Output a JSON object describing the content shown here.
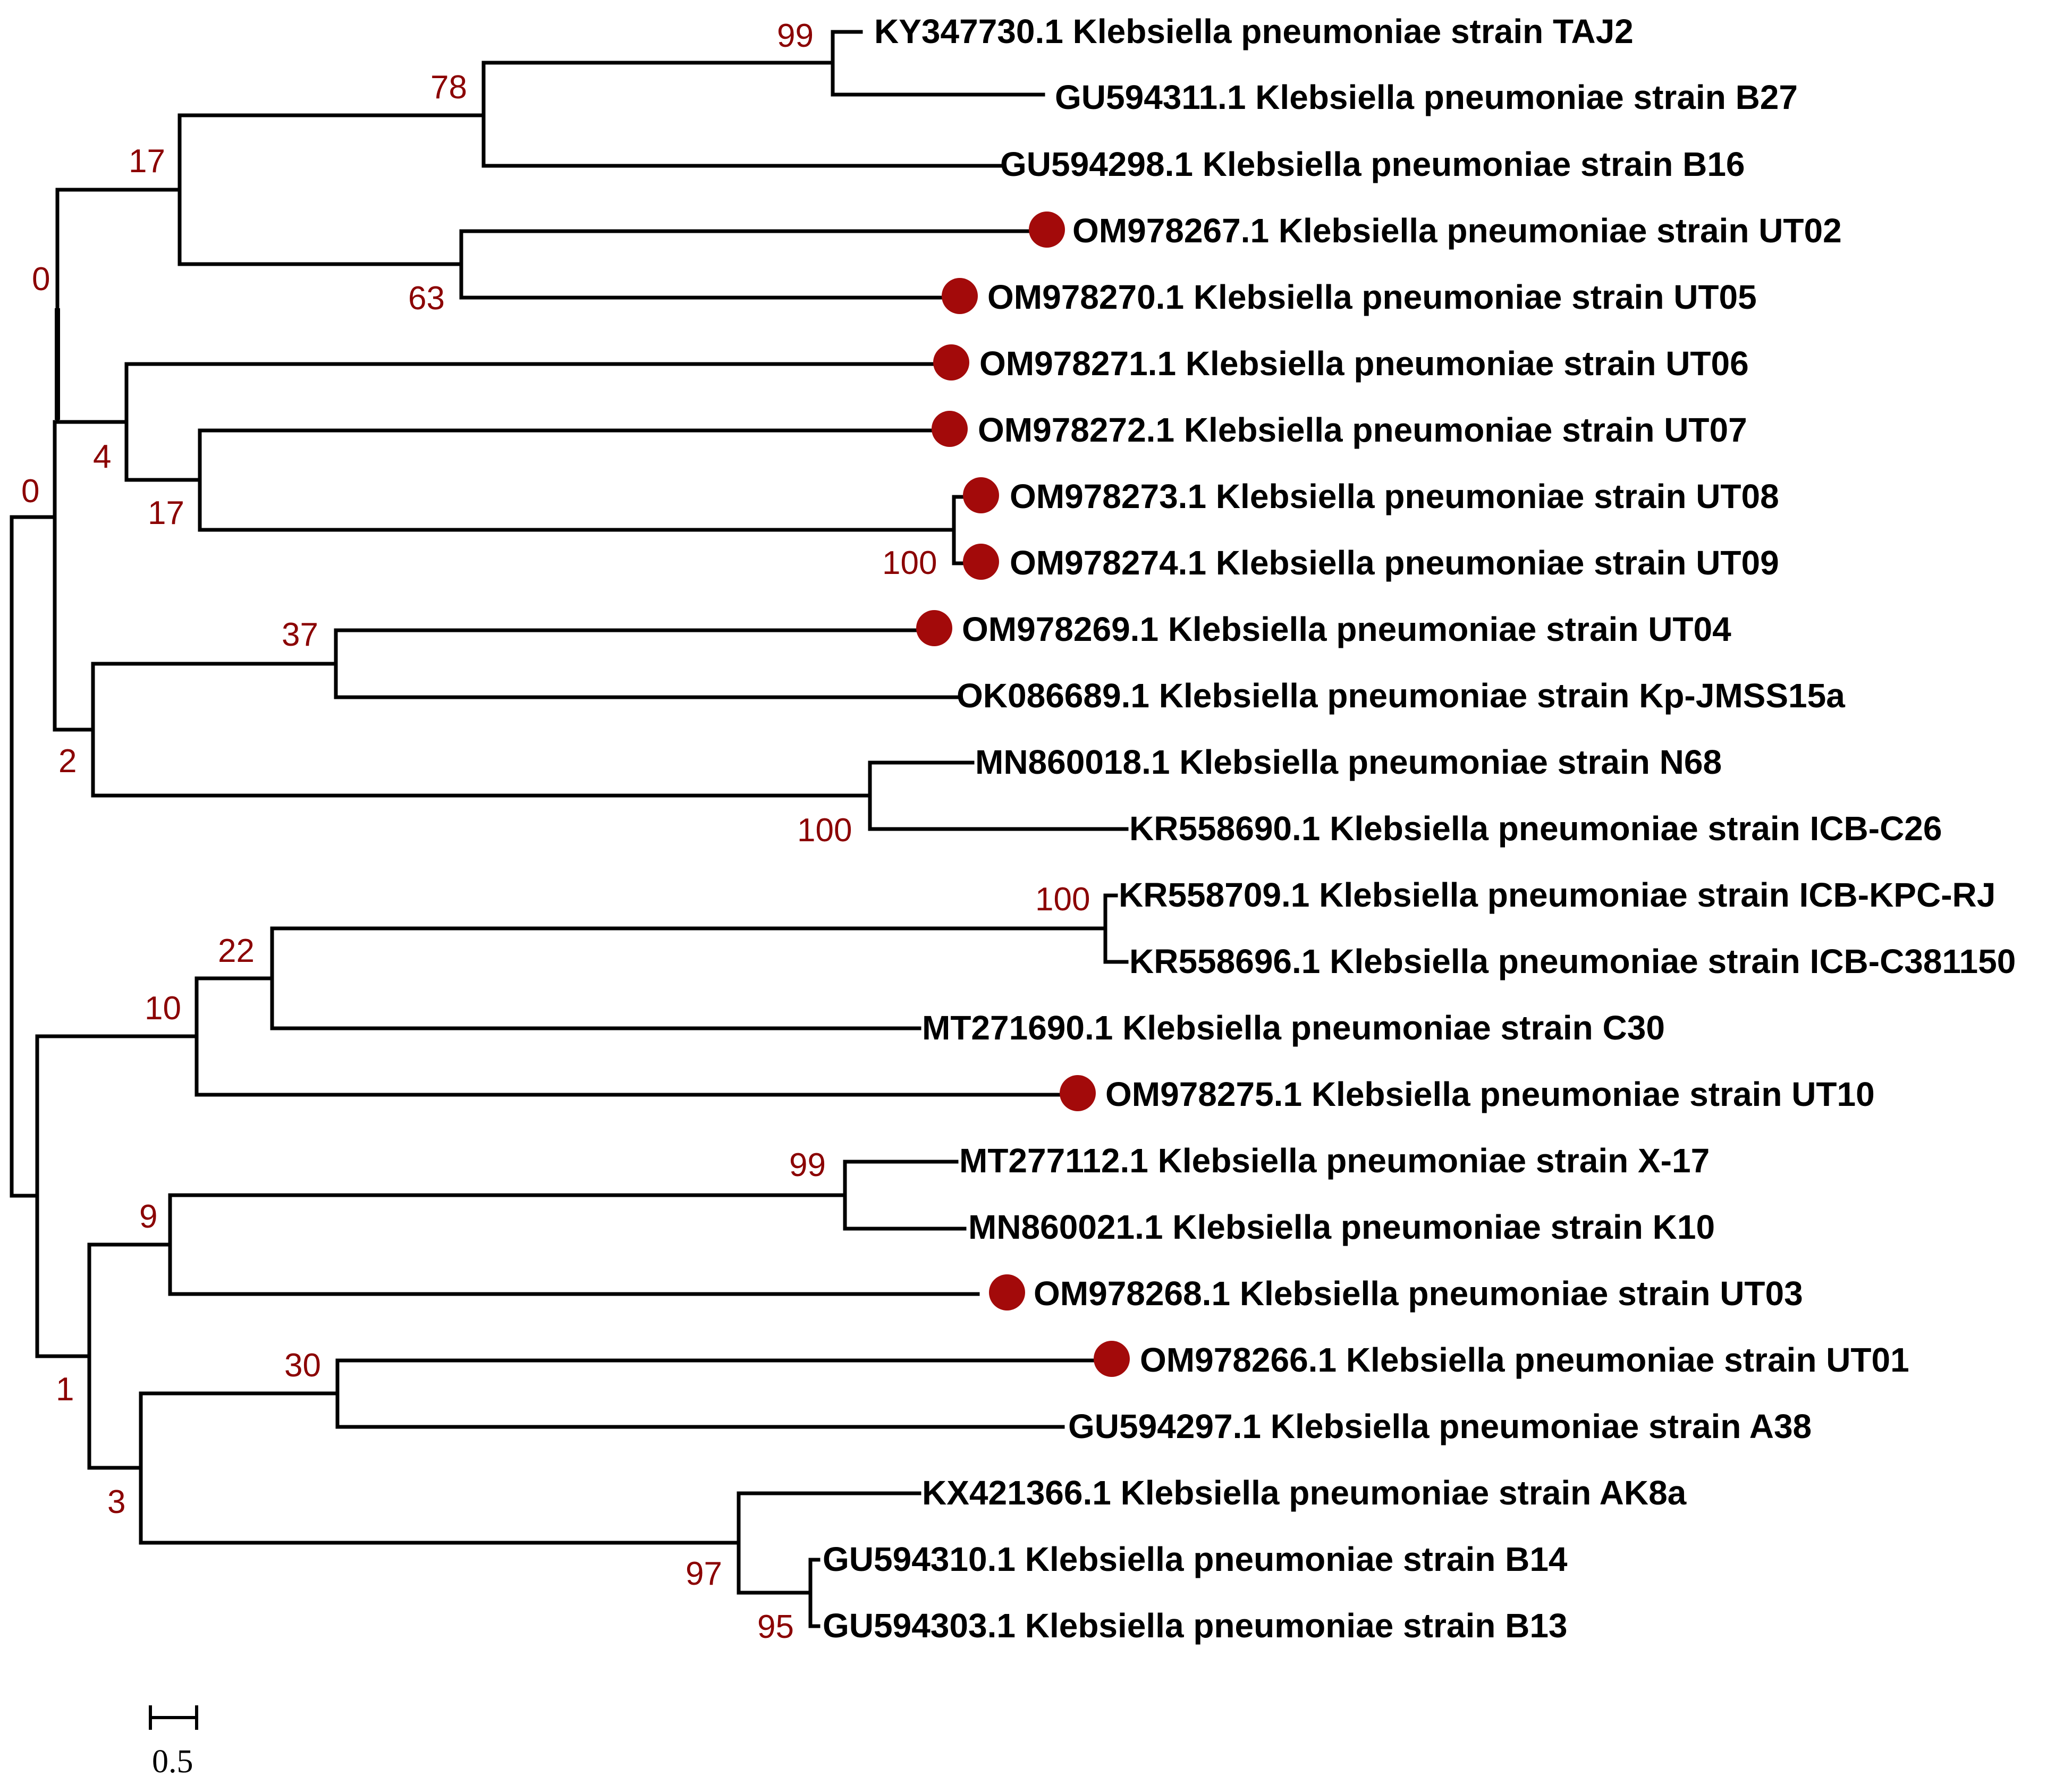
{
  "figure": {
    "type": "phylogenetic-tree",
    "colors": {
      "branch": "#000000",
      "bootstrap": "#8b0000",
      "marker": "#a30a0a"
    }
  },
  "scale_bar": {
    "label": "0.5"
  },
  "taxa": [
    {
      "label": "KY347730.1 Klebsiella pneumoniae strain TAJ2",
      "marked": false
    },
    {
      "label": "GU594311.1 Klebsiella pneumoniae strain B27",
      "marked": false
    },
    {
      "label": "GU594298.1 Klebsiella pneumoniae strain B16",
      "marked": false
    },
    {
      "label": "OM978267.1 Klebsiella pneumoniae strain UT02",
      "marked": true
    },
    {
      "label": "OM978270.1 Klebsiella pneumoniae strain UT05",
      "marked": true
    },
    {
      "label": "OM978271.1 Klebsiella pneumoniae strain UT06",
      "marked": true
    },
    {
      "label": "OM978272.1 Klebsiella pneumoniae strain UT07",
      "marked": true
    },
    {
      "label": "OM978273.1 Klebsiella pneumoniae strain UT08",
      "marked": true
    },
    {
      "label": "OM978274.1 Klebsiella pneumoniae strain UT09",
      "marked": true
    },
    {
      "label": "OM978269.1 Klebsiella pneumoniae strain UT04",
      "marked": true
    },
    {
      "label": "OK086689.1 Klebsiella pneumoniae strain Kp-JMSS15a",
      "marked": false
    },
    {
      "label": "MN860018.1 Klebsiella pneumoniae strain N68",
      "marked": false
    },
    {
      "label": "KR558690.1 Klebsiella pneumoniae strain ICB-C26",
      "marked": false
    },
    {
      "label": "KR558709.1 Klebsiella pneumoniae strain ICB-KPC-RJ",
      "marked": false
    },
    {
      "label": "KR558696.1 Klebsiella pneumoniae strain ICB-C381150",
      "marked": false
    },
    {
      "label": "MT271690.1 Klebsiella pneumoniae strain C30",
      "marked": false
    },
    {
      "label": "OM978275.1 Klebsiella pneumoniae strain UT10",
      "marked": true
    },
    {
      "label": "MT277112.1 Klebsiella pneumoniae strain X-17",
      "marked": false
    },
    {
      "label": "MN860021.1 Klebsiella pneumoniae strain K10",
      "marked": false
    },
    {
      "label": "OM978268.1 Klebsiella pneumoniae strain UT03",
      "marked": true
    },
    {
      "label": "OM978266.1 Klebsiella pneumoniae strain UT01",
      "marked": true
    },
    {
      "label": "GU594297.1 Klebsiella pneumoniae strain A38",
      "marked": false
    },
    {
      "label": "KX421366.1 Klebsiella pneumoniae strain AK8a",
      "marked": false
    },
    {
      "label": "GU594310.1 Klebsiella pneumoniae strain B14",
      "marked": false
    },
    {
      "label": "GU594303.1 Klebsiella pneumoniae strain B13",
      "marked": false
    }
  ],
  "bootstrap_values": [
    {
      "node": "TAJ2-B27",
      "value": "99"
    },
    {
      "node": "TAJ2-B27-B16",
      "value": "78"
    },
    {
      "node": "UT02-UT05",
      "value": "63"
    },
    {
      "node": "B16-group+UT02-UT05",
      "value": "17"
    },
    {
      "node": "UT06-to-UT09",
      "value": "4"
    },
    {
      "node": "UT07-UT08-UT09",
      "value": "17"
    },
    {
      "node": "UT08-UT09",
      "value": "100"
    },
    {
      "node": "upper-clade",
      "value": "0"
    },
    {
      "node": "upper-plus-UT04",
      "value": "0"
    },
    {
      "node": "UT04-Kp-JMSS15a",
      "value": "37"
    },
    {
      "node": "N68-ICB-C26",
      "value": "100"
    },
    {
      "node": "UT04-to-ICB-C26",
      "value": "2"
    },
    {
      "node": "ICB-KPC-RJ-ICB-C381150",
      "value": "100"
    },
    {
      "node": "ICB-with-C30",
      "value": "22"
    },
    {
      "node": "ICB-C30-UT10",
      "value": "10"
    },
    {
      "node": "X-17-K10",
      "value": "99"
    },
    {
      "node": "X-17-K10-UT03",
      "value": "9"
    },
    {
      "node": "UT01-A38",
      "value": "30"
    },
    {
      "node": "B14-B13",
      "value": "95"
    },
    {
      "node": "AK8a-B14-B13",
      "value": "97"
    },
    {
      "node": "UT01-to-B13",
      "value": "3"
    },
    {
      "node": "lower-subclade",
      "value": "1"
    }
  ]
}
